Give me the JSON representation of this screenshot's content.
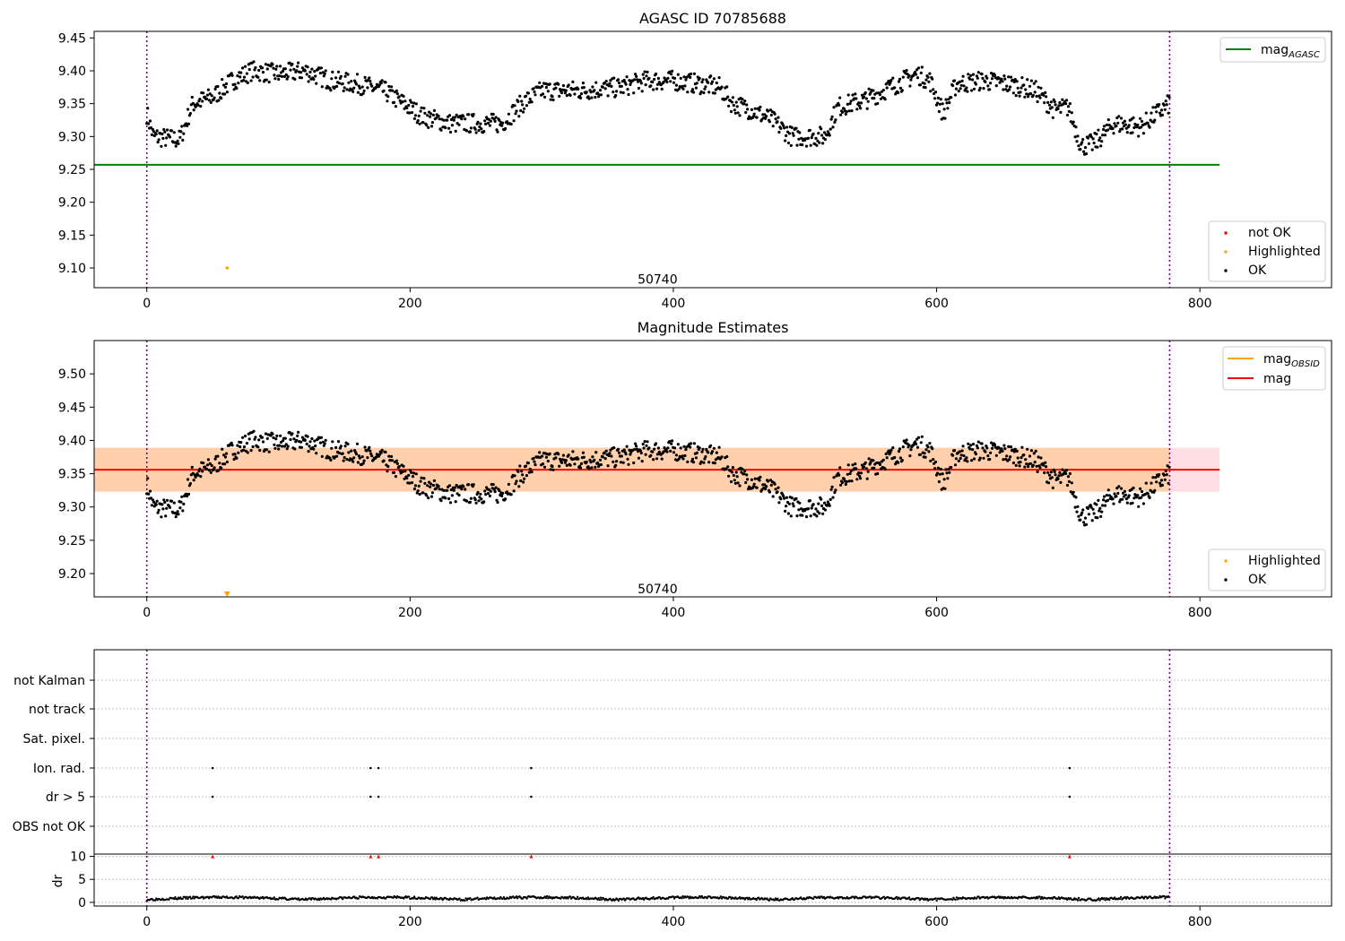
{
  "chart_data": [
    {
      "type": "scatter",
      "title": "AGASC ID 70785688",
      "xlabel": "",
      "ylabel": "",
      "xlim": [
        -40,
        900
      ],
      "ylim": [
        9.07,
        9.46
      ],
      "xticks": [
        0,
        200,
        400,
        600,
        800
      ],
      "yticks": [
        9.1,
        9.15,
        9.2,
        9.25,
        9.3,
        9.35,
        9.4,
        9.45
      ],
      "annotation": {
        "text": "50740",
        "x": 388,
        "y": 9.083
      },
      "vlines": [
        0,
        777
      ],
      "hlines": [
        {
          "name": "mag_AGASC",
          "y": 9.257,
          "x0": -40,
          "x1": 815,
          "color": "#008000"
        }
      ],
      "highlighted_points": [
        {
          "x": 61,
          "y": 9.1
        }
      ],
      "legend_lines": [
        {
          "label": "mag",
          "sub": "AGASC",
          "color": "#008000"
        }
      ],
      "legend_points": [
        {
          "label": "not OK",
          "color": "#ff0000"
        },
        {
          "label": "Highlighted",
          "color": "#ffa500"
        },
        {
          "label": "OK",
          "color": "#000000"
        }
      ]
    },
    {
      "type": "scatter",
      "title": "Magnitude Estimates",
      "xlabel": "",
      "ylabel": "",
      "xlim": [
        -40,
        900
      ],
      "ylim": [
        9.165,
        9.55
      ],
      "xticks": [
        0,
        200,
        400,
        600,
        800
      ],
      "yticks": [
        9.2,
        9.25,
        9.3,
        9.35,
        9.4,
        9.45,
        9.5
      ],
      "annotation": {
        "text": "50740",
        "x": 388,
        "y": 9.177
      },
      "vlines": [
        0,
        777
      ],
      "mag_line": {
        "y": 9.356,
        "x0": -40,
        "x1": 815,
        "color": "#ff0000"
      },
      "band_outer": {
        "y0": 9.323,
        "y1": 9.389,
        "color": "#ffc0cb"
      },
      "band_obsid": {
        "y0": 9.323,
        "y1": 9.389,
        "x0": -40,
        "x1": 777,
        "color": "#ffa500"
      },
      "highlighted_marker": {
        "x": 61,
        "y": 9.169
      },
      "legend_lines": [
        {
          "label": "mag",
          "sub": "OBSID",
          "color": "#ffa500"
        },
        {
          "label": "mag",
          "sub": "",
          "color": "#ff0000"
        }
      ],
      "legend_points": [
        {
          "label": "Highlighted",
          "color": "#ffa500"
        },
        {
          "label": "OK",
          "color": "#000000"
        }
      ]
    },
    {
      "type": "scatter",
      "title": "",
      "xlim": [
        -40,
        900
      ],
      "xticks": [
        0,
        200,
        400,
        600,
        800
      ],
      "flag_rows": [
        "not Kalman",
        "not track",
        "Sat. pixel.",
        "Ion. rad.",
        "dr > 5",
        "OBS not OK"
      ],
      "flag_points": {
        "Ion. rad.": [
          50,
          170,
          176,
          292,
          701
        ],
        "dr > 5": [
          50,
          170,
          176,
          292,
          701
        ]
      },
      "dr_ylabel": "dr",
      "dr_ticks": [
        0,
        5,
        10
      ],
      "dr_ylim": [
        -0.8,
        10.5
      ],
      "dr_outliers": [
        50,
        170,
        176,
        292,
        701
      ],
      "vlines": [
        0,
        777
      ]
    }
  ]
}
